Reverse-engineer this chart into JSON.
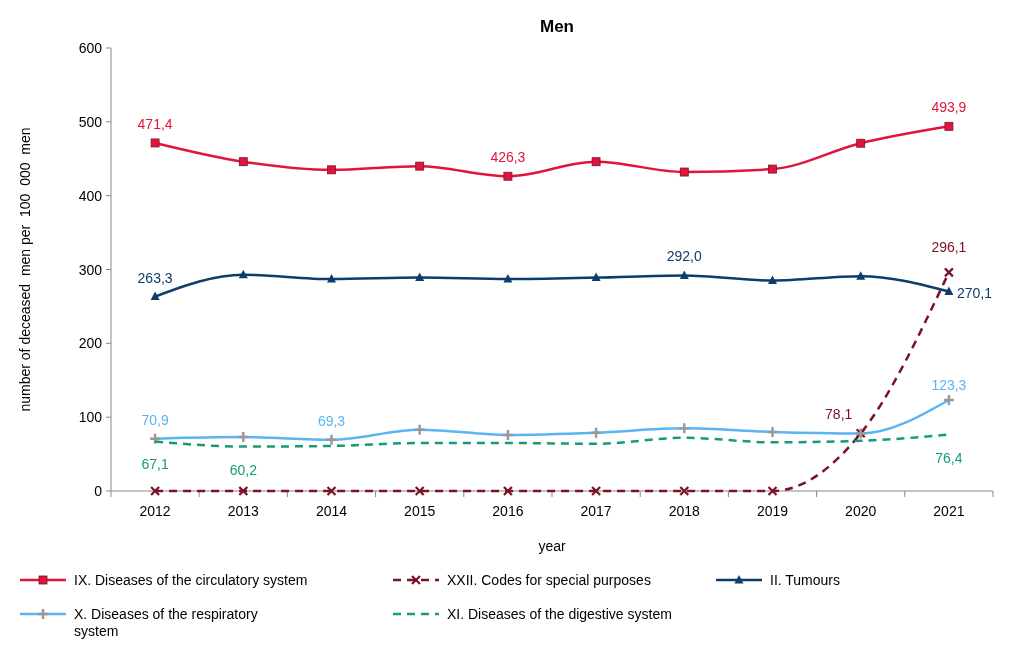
{
  "chart_data": {
    "type": "line",
    "title": "Men",
    "xlabel": "year",
    "ylabel": "number of deceased  men per  100  000  men",
    "categories": [
      "2012",
      "2013",
      "2014",
      "2015",
      "2016",
      "2017",
      "2018",
      "2019",
      "2020",
      "2021"
    ],
    "ylim": [
      0,
      600
    ],
    "yticks": [
      0,
      100,
      200,
      300,
      400,
      500,
      600
    ],
    "grid": false,
    "legend": "bottom",
    "series": [
      {
        "name": "IX. Diseases of the circulatory system",
        "color": "#e0143c",
        "marker": "square",
        "line_style": "solid",
        "values": [
          471.4,
          446,
          435,
          440,
          426.3,
          446,
          432,
          436,
          471,
          493.9
        ],
        "value_labels": [
          "471,4",
          null,
          null,
          null,
          "426,3",
          null,
          null,
          null,
          null,
          "493,9"
        ]
      },
      {
        "name": "XXII. Codes for special purposes",
        "color": "#7b1226",
        "marker": "cross",
        "line_style": "dashed",
        "values": [
          0,
          0,
          0,
          0,
          0,
          0,
          0,
          0,
          78.1,
          296.1
        ],
        "value_labels": [
          null,
          null,
          null,
          null,
          null,
          null,
          null,
          null,
          "78,1",
          "296,1"
        ]
      },
      {
        "name": "II.  Tumours",
        "color": "#0d3d6b",
        "marker": "triangle",
        "line_style": "solid",
        "values": [
          263.3,
          293,
          287,
          289,
          287,
          289,
          292.0,
          285,
          291,
          270.1
        ],
        "value_labels": [
          "263,3",
          null,
          null,
          null,
          null,
          null,
          "292,0",
          null,
          null,
          "270,1"
        ]
      },
      {
        "name": "X.  Diseases of the respiratory system",
        "color": "#5ab4f5",
        "marker": "cross",
        "line_style": "solid",
        "values": [
          70.9,
          73,
          69.3,
          83,
          76,
          79,
          85,
          80,
          78,
          123.3
        ],
        "value_labels": [
          "70,9",
          null,
          "69,3",
          null,
          null,
          null,
          null,
          null,
          null,
          "123,3"
        ]
      },
      {
        "name": "XI. Diseases of the digestive system",
        "color": "#159a7a",
        "marker": "none",
        "line_style": "dashed",
        "values": [
          67.1,
          60.2,
          61,
          65,
          65,
          64,
          72,
          66,
          68,
          76.4
        ],
        "value_labels": [
          "67,1",
          "60,2",
          null,
          null,
          null,
          null,
          null,
          null,
          null,
          "76,4"
        ]
      }
    ]
  }
}
